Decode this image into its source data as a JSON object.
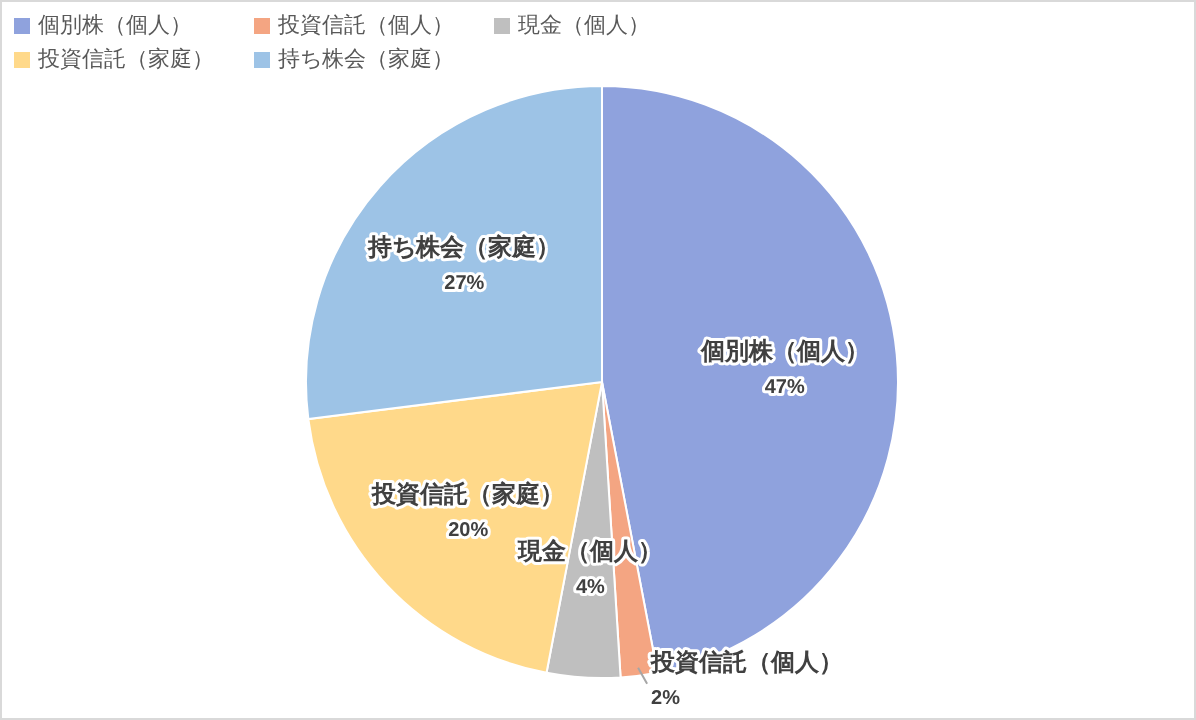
{
  "chart_data": {
    "type": "pie",
    "categories": [
      "個別株（個人）",
      "投資信託（個人）",
      "現金（個人）",
      "投資信託（家庭）",
      "持ち株会（家庭）"
    ],
    "values": [
      47,
      2,
      4,
      20,
      27
    ],
    "value_labels": [
      "47%",
      "2%",
      "4%",
      "20%",
      "27%"
    ],
    "colors": [
      "#8fa2dd",
      "#f4a582",
      "#bfbfbf",
      "#ffd98a",
      "#9dc3e6"
    ],
    "legend": "top left"
  }
}
